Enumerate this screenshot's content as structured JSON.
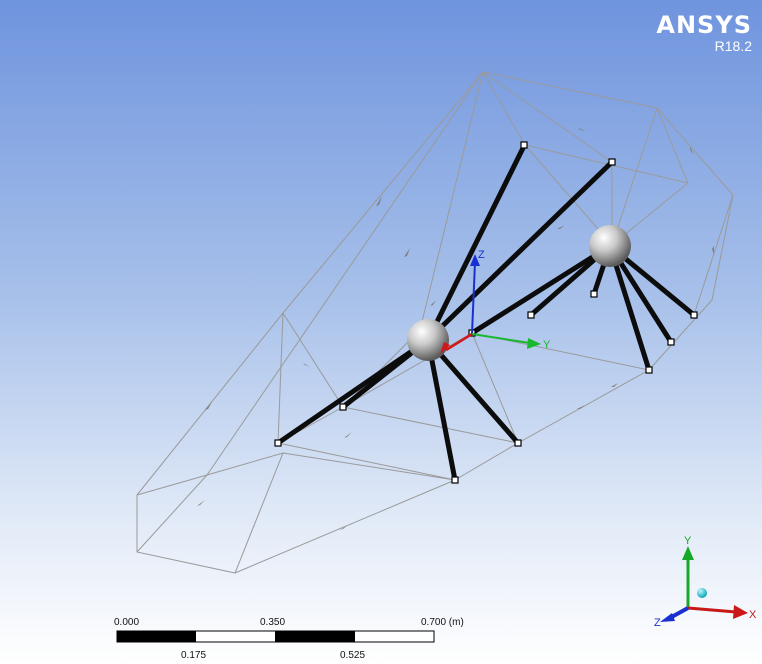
{
  "brand": {
    "name": "ANSYS",
    "version": "R18.2"
  },
  "model_axes": {
    "z_label": "Z",
    "y_label": "Y"
  },
  "triad": {
    "y_label": "Y",
    "x_label": "X",
    "z_label": "Z"
  },
  "scale_bar": {
    "top_labels": [
      "0.000",
      "0.350",
      "0.700 (m)"
    ],
    "bottom_labels": [
      "0.175",
      "0.525"
    ]
  }
}
